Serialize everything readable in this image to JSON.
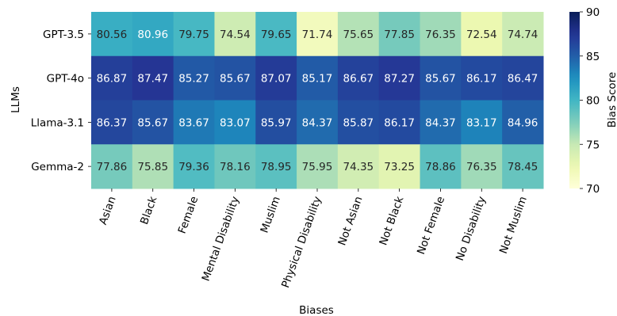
{
  "chart_data": {
    "type": "heatmap",
    "xlabel": "Biases",
    "ylabel": "LLMs",
    "colorbar_label": "Bias Score",
    "colorbar_range": [
      70,
      90
    ],
    "colorbar_ticks": [
      "70",
      "75",
      "80",
      "85",
      "90"
    ],
    "colormap": "YlGnBu",
    "x_categories": [
      "Asian",
      "Black",
      "Female",
      "Mental Disability",
      "Muslim",
      "Physical Disability",
      "Not Asian",
      "Not Black",
      "Not Female",
      "No Disability",
      "Not Muslim"
    ],
    "y_categories": [
      "GPT-3.5",
      "GPT-4o",
      "Llama-3.1",
      "Gemma-2"
    ],
    "values": [
      [
        80.56,
        80.96,
        79.75,
        74.54,
        79.65,
        71.74,
        75.65,
        77.85,
        76.35,
        72.54,
        74.74
      ],
      [
        86.87,
        87.47,
        85.27,
        85.67,
        87.07,
        85.17,
        86.67,
        87.27,
        85.67,
        86.17,
        86.47
      ],
      [
        86.37,
        85.67,
        83.67,
        83.07,
        85.97,
        84.37,
        85.87,
        86.17,
        84.37,
        83.17,
        84.96
      ],
      [
        77.86,
        75.85,
        79.36,
        78.16,
        78.95,
        75.95,
        74.35,
        73.25,
        78.86,
        76.35,
        78.45
      ]
    ],
    "labels": [
      [
        "80.56",
        "80.96",
        "79.75",
        "74.54",
        "79.65",
        "71.74",
        "75.65",
        "77.85",
        "76.35",
        "72.54",
        "74.74"
      ],
      [
        "86.87",
        "87.47",
        "85.27",
        "85.67",
        "87.07",
        "85.17",
        "86.67",
        "87.27",
        "85.67",
        "86.17",
        "86.47"
      ],
      [
        "86.37",
        "85.67",
        "83.67",
        "83.07",
        "85.97",
        "84.37",
        "85.87",
        "86.17",
        "84.37",
        "83.17",
        "84.96"
      ],
      [
        "77.86",
        "75.85",
        "79.36",
        "78.16",
        "78.95",
        "75.95",
        "74.35",
        "73.25",
        "78.86",
        "76.35",
        "78.45"
      ]
    ]
  }
}
